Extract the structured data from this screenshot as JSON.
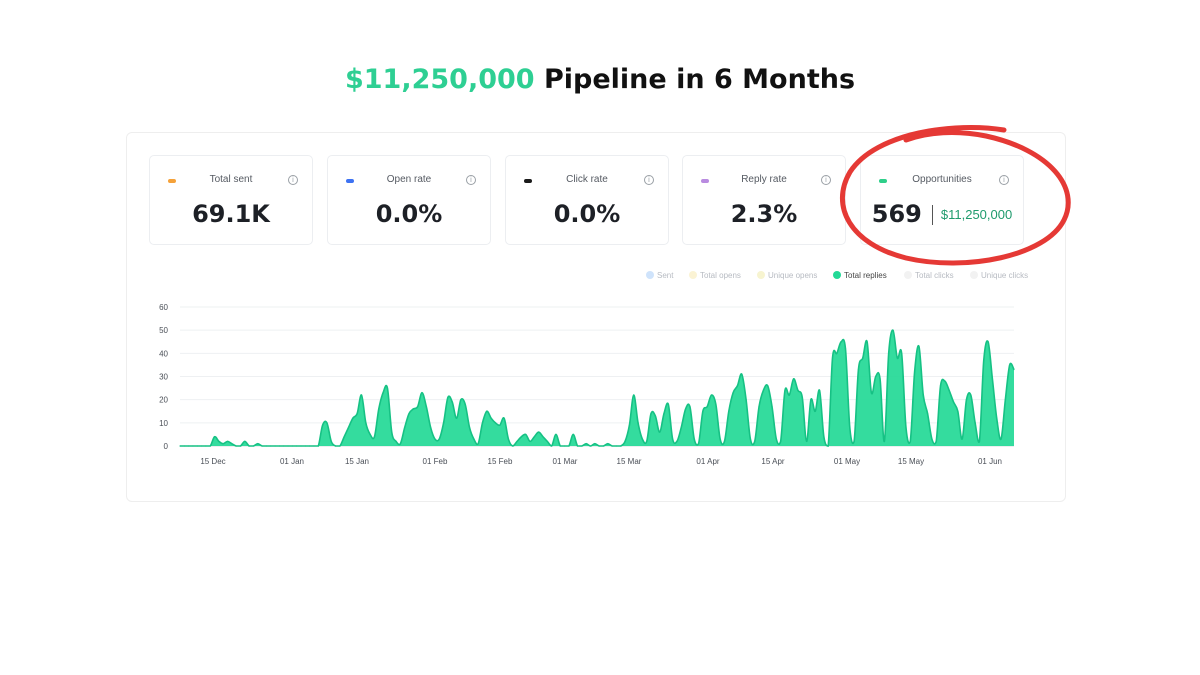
{
  "headline": {
    "amount": "$11,250,000",
    "text": "Pipeline in 6 Months"
  },
  "stats": [
    {
      "label": "Total sent",
      "value": "69.1K",
      "dot_color": "#f5a23a"
    },
    {
      "label": "Open rate",
      "value": "0.0%",
      "dot_color": "#3d72f2"
    },
    {
      "label": "Click rate",
      "value": "0.0%",
      "dot_color": "#1b1b1b"
    },
    {
      "label": "Reply rate",
      "value": "2.3%",
      "dot_color": "#b98be0"
    }
  ],
  "opportunities": {
    "label": "Opportunities",
    "count": "569",
    "amount": "$11,250,000",
    "dot_color": "#2ecf8a"
  },
  "info_glyph": "i",
  "legend": [
    {
      "label": "Sent",
      "color": "#cfe3fb",
      "active": false
    },
    {
      "label": "Total opens",
      "color": "#fbf3d4",
      "active": false
    },
    {
      "label": "Unique opens",
      "color": "#f7f4d0",
      "active": false
    },
    {
      "label": "Total replies",
      "color": "#23d996",
      "active": true
    },
    {
      "label": "Total clicks",
      "color": "#f2f2f2",
      "active": false
    },
    {
      "label": "Unique clicks",
      "color": "#f2f2f2",
      "active": false
    }
  ],
  "annotation": {
    "type": "hand-drawn red circle around Opportunities card",
    "color": "#e53935"
  },
  "chart_data": {
    "type": "area",
    "x_start": "12/10",
    "x_end": "06/04",
    "xticks": [
      "15 Dec",
      "01 Jan",
      "15 Jan",
      "01 Feb",
      "15 Feb",
      "01 Mar",
      "15 Mar",
      "01 Apr",
      "15 Apr",
      "01 May",
      "15 May",
      "01 Jun"
    ],
    "yticks": [
      0,
      10,
      20,
      30,
      40,
      50,
      60
    ],
    "ylim": [
      0,
      60
    ],
    "grid": true,
    "series": [
      {
        "name": "Total replies",
        "color": "#23d996",
        "values": [
          0,
          0,
          0,
          0,
          0,
          0,
          0,
          0,
          4,
          2,
          1,
          2,
          1,
          0,
          0,
          2,
          0,
          0,
          1,
          0,
          0,
          0,
          0,
          0,
          0,
          0,
          0,
          0,
          0,
          0,
          0,
          0,
          0,
          9,
          10,
          2,
          0,
          0,
          4,
          8,
          12,
          14,
          22,
          10,
          5,
          4,
          16,
          23,
          25,
          6,
          2,
          1,
          8,
          14,
          16,
          17,
          23,
          17,
          8,
          3,
          3,
          10,
          21,
          19,
          12,
          20,
          18,
          8,
          3,
          1,
          10,
          15,
          12,
          10,
          9,
          12,
          3,
          0,
          2,
          4,
          5,
          2,
          4,
          6,
          4,
          2,
          0,
          5,
          0,
          0,
          0,
          5,
          0,
          0,
          1,
          0,
          1,
          0,
          0,
          1,
          0,
          0,
          0,
          2,
          9,
          22,
          10,
          3,
          2,
          14,
          13,
          6,
          14,
          18,
          3,
          2,
          8,
          16,
          17,
          3,
          1,
          15,
          17,
          22,
          18,
          3,
          2,
          15,
          23,
          26,
          31,
          20,
          3,
          2,
          17,
          24,
          26,
          17,
          3,
          2,
          24,
          22,
          29,
          24,
          21,
          2,
          20,
          15,
          24,
          4,
          0,
          38,
          40,
          45,
          42,
          8,
          2,
          33,
          38,
          45,
          23,
          30,
          29,
          2,
          40,
          50,
          38,
          40,
          8,
          2,
          32,
          43,
          22,
          14,
          3,
          2,
          26,
          28,
          24,
          19,
          15,
          3,
          20,
          22,
          10,
          2,
          37,
          45,
          29,
          12,
          3,
          20,
          35,
          33
        ]
      }
    ]
  }
}
